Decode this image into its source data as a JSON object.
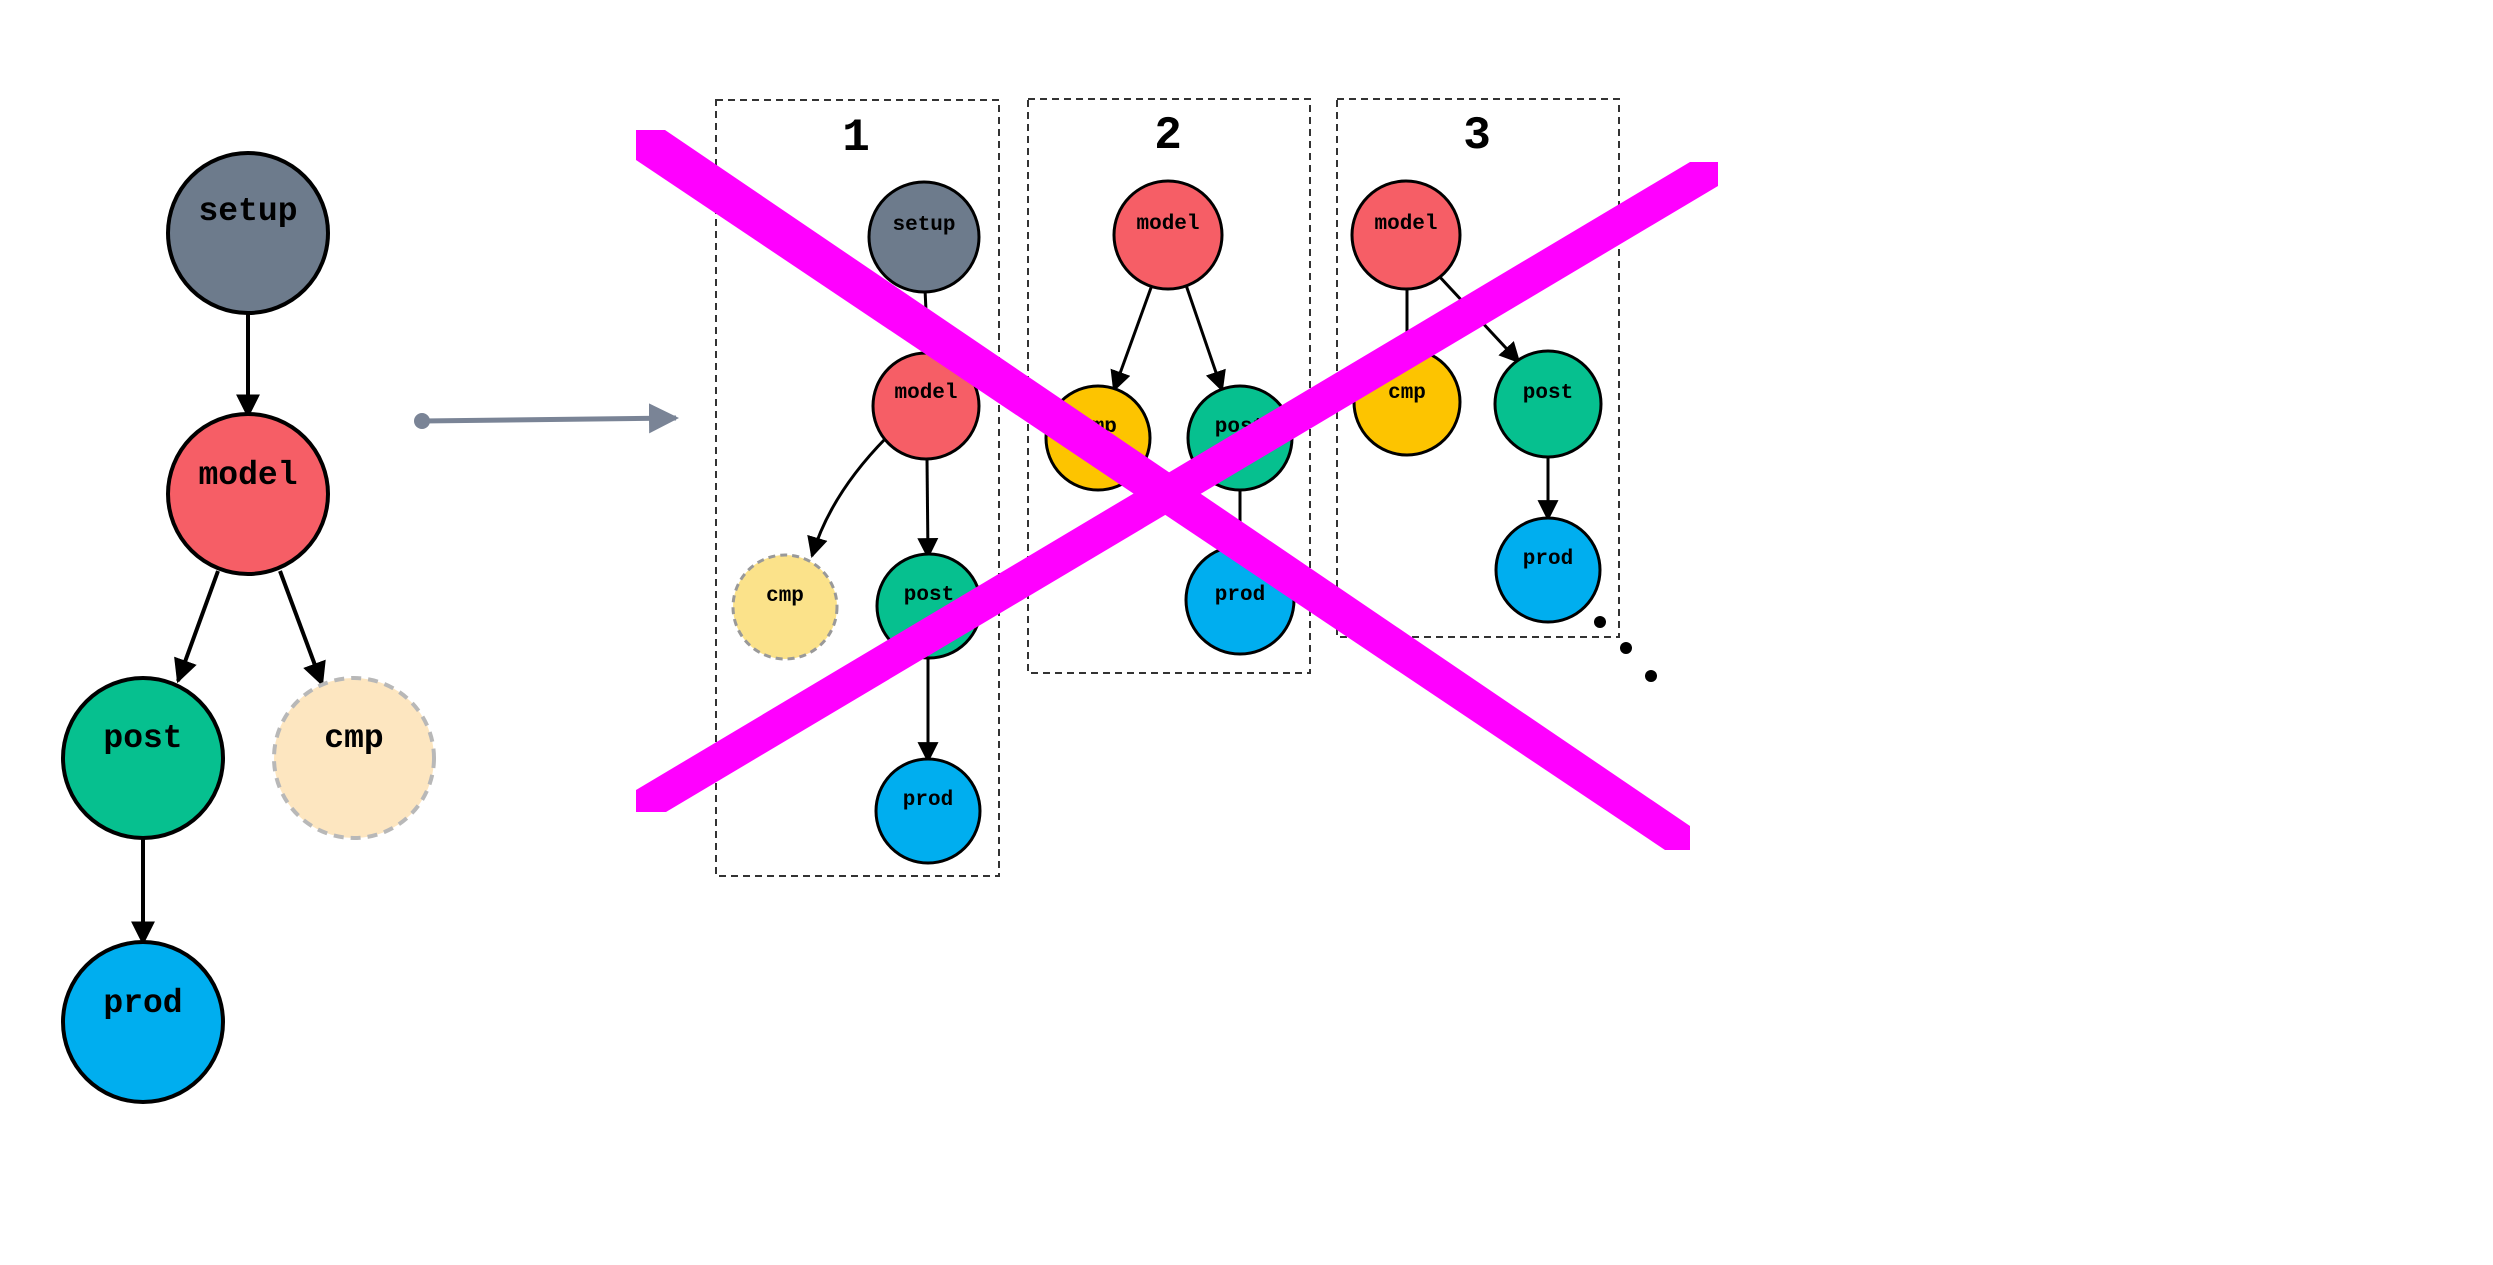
{
  "colors": {
    "setup": "#6d7b8c",
    "model": "#f65e66",
    "post": "#06c08f",
    "prod": "#00aeef",
    "cmp_original": "#fde6c0",
    "cmp_panel1": "#fbe28a",
    "cmp_filled": "#fdc400",
    "arrow_connector": "#7a8496",
    "cross": "#ff00ff"
  },
  "original_graph": {
    "nodes": {
      "setup": "setup",
      "model": "model",
      "post": "post",
      "cmp": "cmp",
      "prod": "prod"
    }
  },
  "panels": [
    {
      "number": "1",
      "nodes": {
        "setup": "setup",
        "model": "model",
        "cmp": "cmp",
        "post": "post",
        "prod": "prod"
      }
    },
    {
      "number": "2",
      "nodes": {
        "model": "model",
        "cmp": "cmp",
        "post": "post",
        "prod": "prod"
      }
    },
    {
      "number": "3",
      "nodes": {
        "model": "model",
        "cmp": "cmp",
        "post": "post",
        "prod": "prod"
      }
    }
  ],
  "icons": {
    "ellipsis": "ellipsis-dots-icon",
    "cross": "cross-out-icon",
    "connector": "right-arrow-icon"
  }
}
